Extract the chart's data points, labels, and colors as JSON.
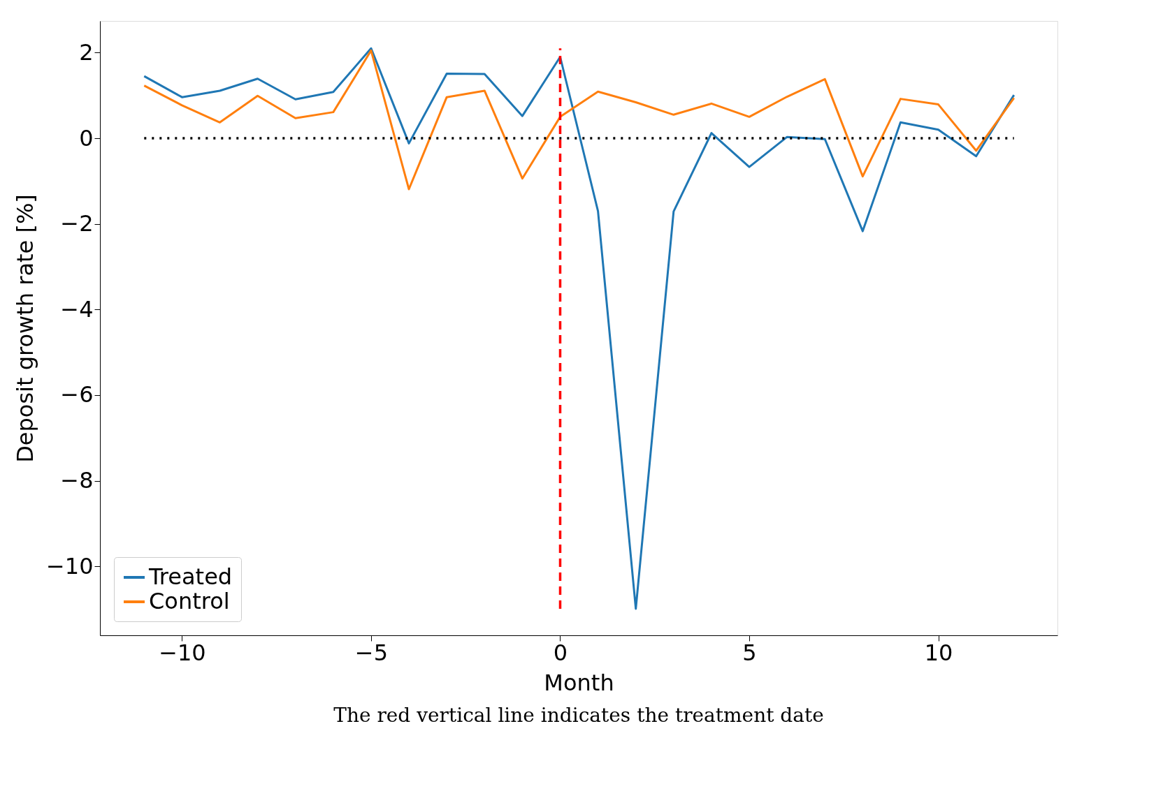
{
  "chart_data": {
    "type": "line",
    "xlabel": "Month",
    "ylabel": "Deposit growth rate [%]",
    "x": [
      -11,
      -10,
      -9,
      -8,
      -7,
      -6,
      -5,
      -4,
      -3,
      -2,
      -1,
      0,
      1,
      2,
      3,
      4,
      5,
      6,
      7,
      8,
      9,
      10,
      11,
      12
    ],
    "series": [
      {
        "name": "Treated",
        "color": "#1f77b4",
        "values": [
          1.45,
          0.96,
          1.11,
          1.39,
          0.91,
          1.08,
          2.1,
          -0.12,
          1.51,
          1.5,
          0.52,
          1.9,
          -1.7,
          -10.99,
          -1.71,
          0.12,
          -0.67,
          0.03,
          -0.02,
          -2.17,
          0.37,
          0.2,
          -0.42,
          1.01
        ]
      },
      {
        "name": "Control",
        "color": "#ff7f0e",
        "values": [
          1.23,
          0.77,
          0.37,
          0.99,
          0.47,
          0.61,
          2.05,
          -1.19,
          0.96,
          1.11,
          -0.94,
          0.5,
          1.09,
          0.84,
          0.55,
          0.81,
          0.5,
          0.97,
          1.38,
          -0.89,
          0.92,
          0.79,
          -0.29,
          0.94
        ]
      }
    ],
    "xlim": [
      -12.17,
      13.15
    ],
    "ylim": [
      -11.61,
      2.74
    ],
    "xticks": [
      {
        "value": -10,
        "label": "−10"
      },
      {
        "value": -5,
        "label": "−5"
      },
      0,
      5,
      10
    ],
    "yticks": [
      {
        "value": -10,
        "label": "−10"
      },
      {
        "value": -8,
        "label": "−8"
      },
      {
        "value": -6,
        "label": "−6"
      },
      {
        "value": -4,
        "label": "−4"
      },
      {
        "value": -2,
        "label": "−2"
      },
      0,
      2
    ],
    "ref_lines": [
      {
        "axis": "y",
        "value": 0,
        "color": "#000000",
        "line_style": "dotted"
      },
      {
        "axis": "x",
        "value": 0,
        "color": "#ff0000",
        "line_style": "dashed"
      }
    ],
    "legend": "bottom left",
    "grid": false,
    "annotations": [
      "The red vertical line indicates the treatment date"
    ]
  }
}
